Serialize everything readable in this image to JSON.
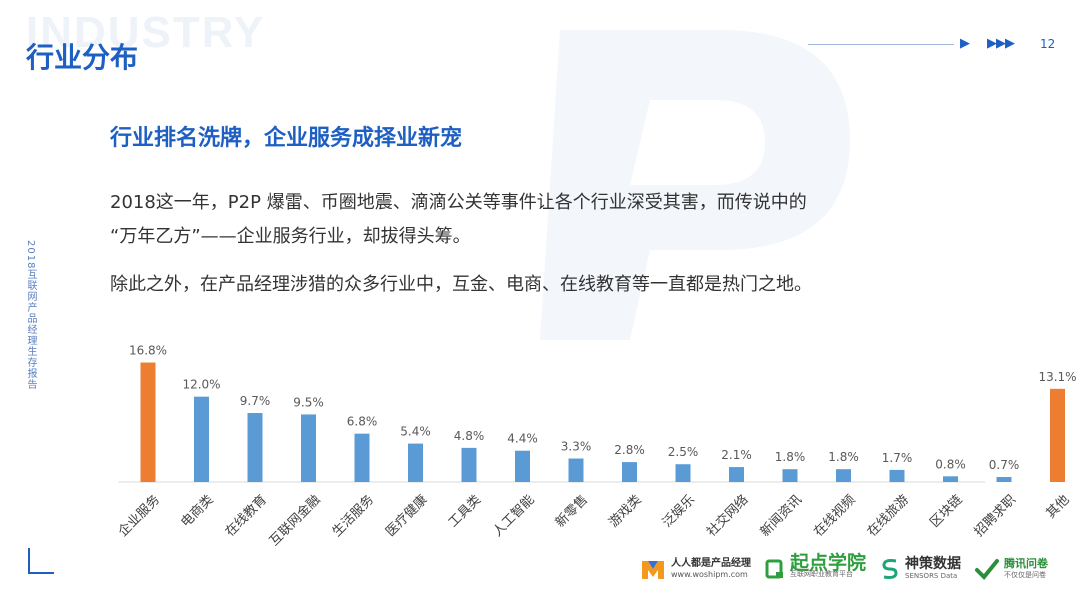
{
  "header": {
    "watermark": "INDUSTRY",
    "title": "行业分布",
    "page_number": "12",
    "arrow_single": "▶",
    "arrow_triple": "▶▶▶"
  },
  "side_label": "2018互联网产品经理生存报告",
  "subtitle": "行业排名洗牌，企业服务成择业新宠",
  "paragraphs": [
    "2018这一年，P2P 爆雷、币圈地震、滴滴公关等事件让各个行业深受其害，而传说中的",
    "“万年乙方”——企业服务行业，却拔得头筹。",
    "除此之外，在产品经理涉猎的众多行业中，互金、电商、在线教育等一直都是热门之地。"
  ],
  "chart_data": {
    "type": "bar",
    "categories": [
      "企业服务",
      "电商类",
      "在线教育",
      "互联网金融",
      "生活服务",
      "医疗健康",
      "工具类",
      "人工智能",
      "新零售",
      "游戏类",
      "泛娱乐",
      "社交网络",
      "新闻资讯",
      "在线视频",
      "在线旅游",
      "区块链",
      "招聘求职",
      "其他"
    ],
    "values": [
      16.8,
      12.0,
      9.7,
      9.5,
      6.8,
      5.4,
      4.8,
      4.4,
      3.3,
      2.8,
      2.5,
      2.1,
      1.8,
      1.8,
      1.7,
      0.8,
      0.7,
      13.1
    ],
    "labels": [
      "16.8%",
      "12.0%",
      "9.7%",
      "9.5%",
      "6.8%",
      "5.4%",
      "4.8%",
      "4.4%",
      "3.3%",
      "2.8%",
      "2.5%",
      "2.1%",
      "1.8%",
      "1.8%",
      "1.7%",
      "0.8%",
      "0.7%",
      "13.1%"
    ],
    "highlight_indices": [
      0,
      17
    ],
    "colors": {
      "default": "#5b9bd5",
      "highlight": "#ed7d31",
      "axis": "#d9d9d9",
      "label": "#595959"
    },
    "ylim": [
      0,
      18
    ],
    "grid": false,
    "legend": "none"
  },
  "logos": {
    "woshipm": {
      "main": "人人都是产品经理",
      "sub": "www.woshipm.com"
    },
    "qidian": {
      "main": "起点学院",
      "sub": "互联网职业教育平台"
    },
    "sensors": {
      "main": "神策数据",
      "sub": "SENSORS Data"
    },
    "tencent": {
      "main": "腾讯问卷",
      "sub": "不仅仅是问卷"
    }
  },
  "colors": {
    "brand_blue": "#1d5fc2"
  }
}
